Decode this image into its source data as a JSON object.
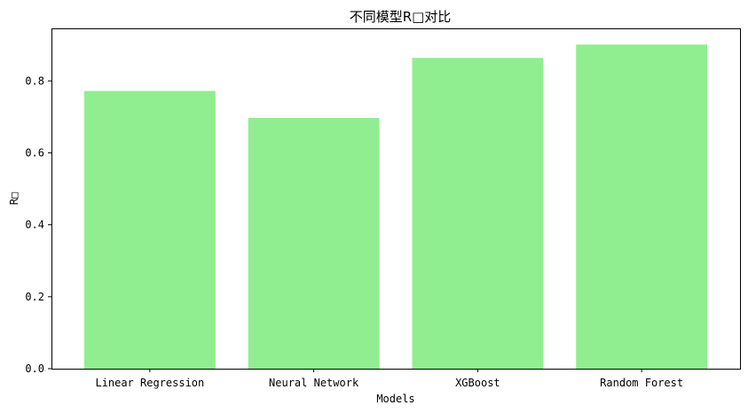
{
  "chart_data": {
    "type": "bar",
    "title": "不同模型R□对比",
    "xlabel": "Models",
    "ylabel": "R□",
    "categories": [
      "Linear Regression",
      "Neural Network",
      "XGBoost",
      "Random Forest"
    ],
    "values": [
      0.772,
      0.697,
      0.864,
      0.901
    ],
    "ylim": [
      0,
      0.946
    ],
    "yticks": [
      "0.0",
      "0.2",
      "0.4",
      "0.6",
      "0.8"
    ],
    "grid": false,
    "bar_color": "#90ee90",
    "axis_color": "#000000"
  }
}
